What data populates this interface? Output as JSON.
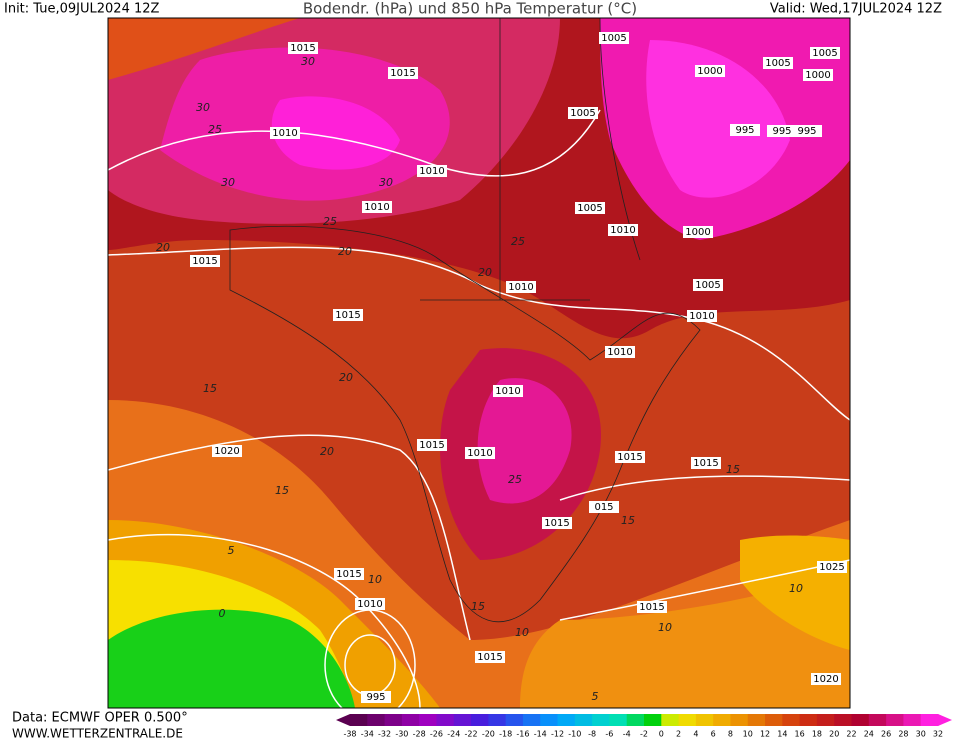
{
  "header": {
    "init": "Init: Tue,09JUL2024 12Z",
    "title": "Bodendr. (hPa) und 850 hPa Temperatur (°C)",
    "valid": "Valid: Wed,17JUL2024 12Z"
  },
  "footer": {
    "source": "Data: ECMWF OPER 0.500°",
    "site": "WWW.WETTERZENTRALE.DE"
  },
  "colorbar": {
    "ticks": [
      -38,
      -34,
      -32,
      -30,
      -28,
      -26,
      -24,
      -22,
      -20,
      -18,
      -16,
      -14,
      -12,
      -10,
      -8,
      -6,
      -4,
      -2,
      0,
      2,
      4,
      6,
      8,
      10,
      12,
      14,
      16,
      18,
      20,
      22,
      24,
      26,
      28,
      30,
      32
    ]
  },
  "isobar_labels": [
    "1015",
    "1015",
    "1010",
    "1010",
    "1010",
    "1015",
    "1015",
    "1010",
    "1005",
    "1010",
    "1000",
    "1005",
    "1010",
    "1010",
    "1010",
    "1015",
    "1010",
    "1015",
    "1015",
    "1015",
    "015",
    "1020",
    "1015",
    "1010",
    "1015",
    "1025",
    "1015",
    "1020",
    "995",
    "1005",
    "1000",
    "1005",
    "1005",
    "1000",
    "995",
    "995",
    "995",
    "1005"
  ],
  "temperature_labels": [
    "30",
    "25",
    "30",
    "30",
    "30",
    "25",
    "20",
    "20",
    "20",
    "25",
    "15",
    "20",
    "20",
    "15",
    "5",
    "0",
    "10",
    "15",
    "10",
    "10",
    "10",
    "5",
    "15",
    "15",
    "25"
  ]
}
